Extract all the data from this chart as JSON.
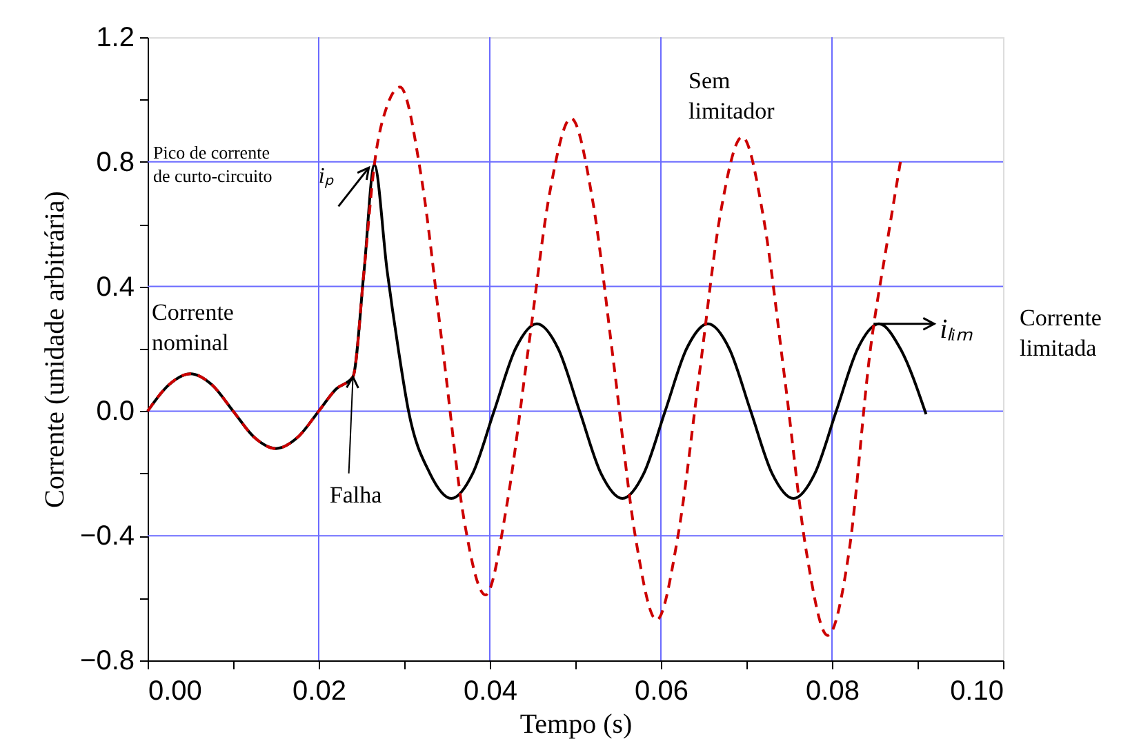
{
  "chart_data": {
    "type": "line",
    "xlabel": "Tempo (s)",
    "ylabel": "Corrente (unidade arbitrária)",
    "xlim": [
      0,
      0.1
    ],
    "ylim": [
      -0.8,
      1.2
    ],
    "xticks": [
      "0.00",
      {
        "value": 0.01,
        "label": null
      },
      {
        "value": 0.02,
        "label": "0.02"
      },
      {
        "value": 0.03,
        "label": null
      },
      {
        "value": 0.04,
        "label": "0.04"
      },
      {
        "value": 0.05,
        "label": null
      },
      {
        "value": 0.06,
        "label": "0.06"
      },
      {
        "value": 0.07,
        "label": null
      },
      {
        "value": 0.08,
        "label": "0.08"
      },
      {
        "value": 0.09,
        "label": null
      },
      {
        "value": 0.1,
        "label": "0.10"
      }
    ],
    "yticks": [
      {
        "value": -0.8,
        "label": "−0.8"
      },
      {
        "value": -0.6,
        "label": null
      },
      {
        "value": -0.4,
        "label": "−0.4"
      },
      {
        "value": -0.2,
        "label": null
      },
      {
        "value": 0,
        "label": "0.0"
      },
      {
        "value": 0.2,
        "label": null
      },
      {
        "value": 0.4,
        "label": "0.4"
      },
      {
        "value": 0.6,
        "label": null
      },
      {
        "value": 0.8,
        "label": "0.8"
      },
      {
        "value": 1.0,
        "label": null
      },
      {
        "value": 1.2,
        "label": "1.2"
      }
    ],
    "grid": true,
    "marker": "none",
    "series": [
      {
        "color": "#cc0000",
        "line_style": "dashed",
        "x": [
          0,
          0.0025,
          0.005,
          0.0075,
          0.01,
          0.0125,
          0.015,
          0.0175,
          0.02,
          0.022,
          0.024,
          0.0253,
          0.0265,
          0.028,
          0.0295,
          0.032,
          0.0345,
          0.037,
          0.0395,
          0.042,
          0.0445,
          0.047,
          0.0495,
          0.052,
          0.0545,
          0.057,
          0.0595,
          0.062,
          0.0645,
          0.067,
          0.0695,
          0.072,
          0.0745,
          0.077,
          0.0795,
          0.082,
          0.0845,
          0.0865,
          0.088
        ],
        "values": [
          0,
          0.085,
          0.12,
          0.085,
          0,
          -0.085,
          -0.12,
          -0.085,
          0,
          0.07,
          0.11,
          0.45,
          0.79,
          0.98,
          1.04,
          0.75,
          0.2,
          -0.35,
          -0.59,
          -0.3,
          0.2,
          0.7,
          0.94,
          0.68,
          0.15,
          -0.4,
          -0.67,
          -0.4,
          0.12,
          0.64,
          0.88,
          0.62,
          0.1,
          -0.45,
          -0.72,
          -0.45,
          0.2,
          0.55,
          0.8
        ]
      },
      {
        "color": "#000000",
        "line_style": "solid",
        "x": [
          0,
          0.0025,
          0.005,
          0.0075,
          0.01,
          0.0125,
          0.015,
          0.0175,
          0.02,
          0.022,
          0.024,
          0.0253,
          0.0265,
          0.028,
          0.0293,
          0.0305,
          0.033,
          0.0355,
          0.038,
          0.0405,
          0.043,
          0.0455,
          0.048,
          0.0505,
          0.053,
          0.0555,
          0.058,
          0.0605,
          0.063,
          0.0655,
          0.068,
          0.0705,
          0.073,
          0.0755,
          0.078,
          0.0805,
          0.083,
          0.0855,
          0.088,
          0.091
        ],
        "values": [
          0,
          0.085,
          0.12,
          0.085,
          0,
          -0.085,
          -0.12,
          -0.085,
          0,
          0.07,
          0.11,
          0.45,
          0.79,
          0.45,
          0.2,
          0,
          -0.2,
          -0.28,
          -0.2,
          0,
          0.2,
          0.28,
          0.2,
          0,
          -0.2,
          -0.28,
          -0.2,
          0,
          0.2,
          0.28,
          0.2,
          0,
          -0.2,
          -0.28,
          -0.2,
          0,
          0.2,
          0.28,
          0.2,
          -0.01
        ]
      }
    ],
    "annotations": [
      "Pico de corrente\nde curto-circuito",
      "Corrente\nnominal",
      "Sem\nlimitador",
      "Corrente\nlimitada",
      {
        "text": "Falha",
        "x": 0.024,
        "y": 0.11
      },
      {
        "text": "iₚ",
        "x": 0.0265,
        "y": 0.79
      },
      {
        "text": "iₗᵢₘ",
        "x": 0.0855,
        "y": 0.28
      }
    ]
  }
}
